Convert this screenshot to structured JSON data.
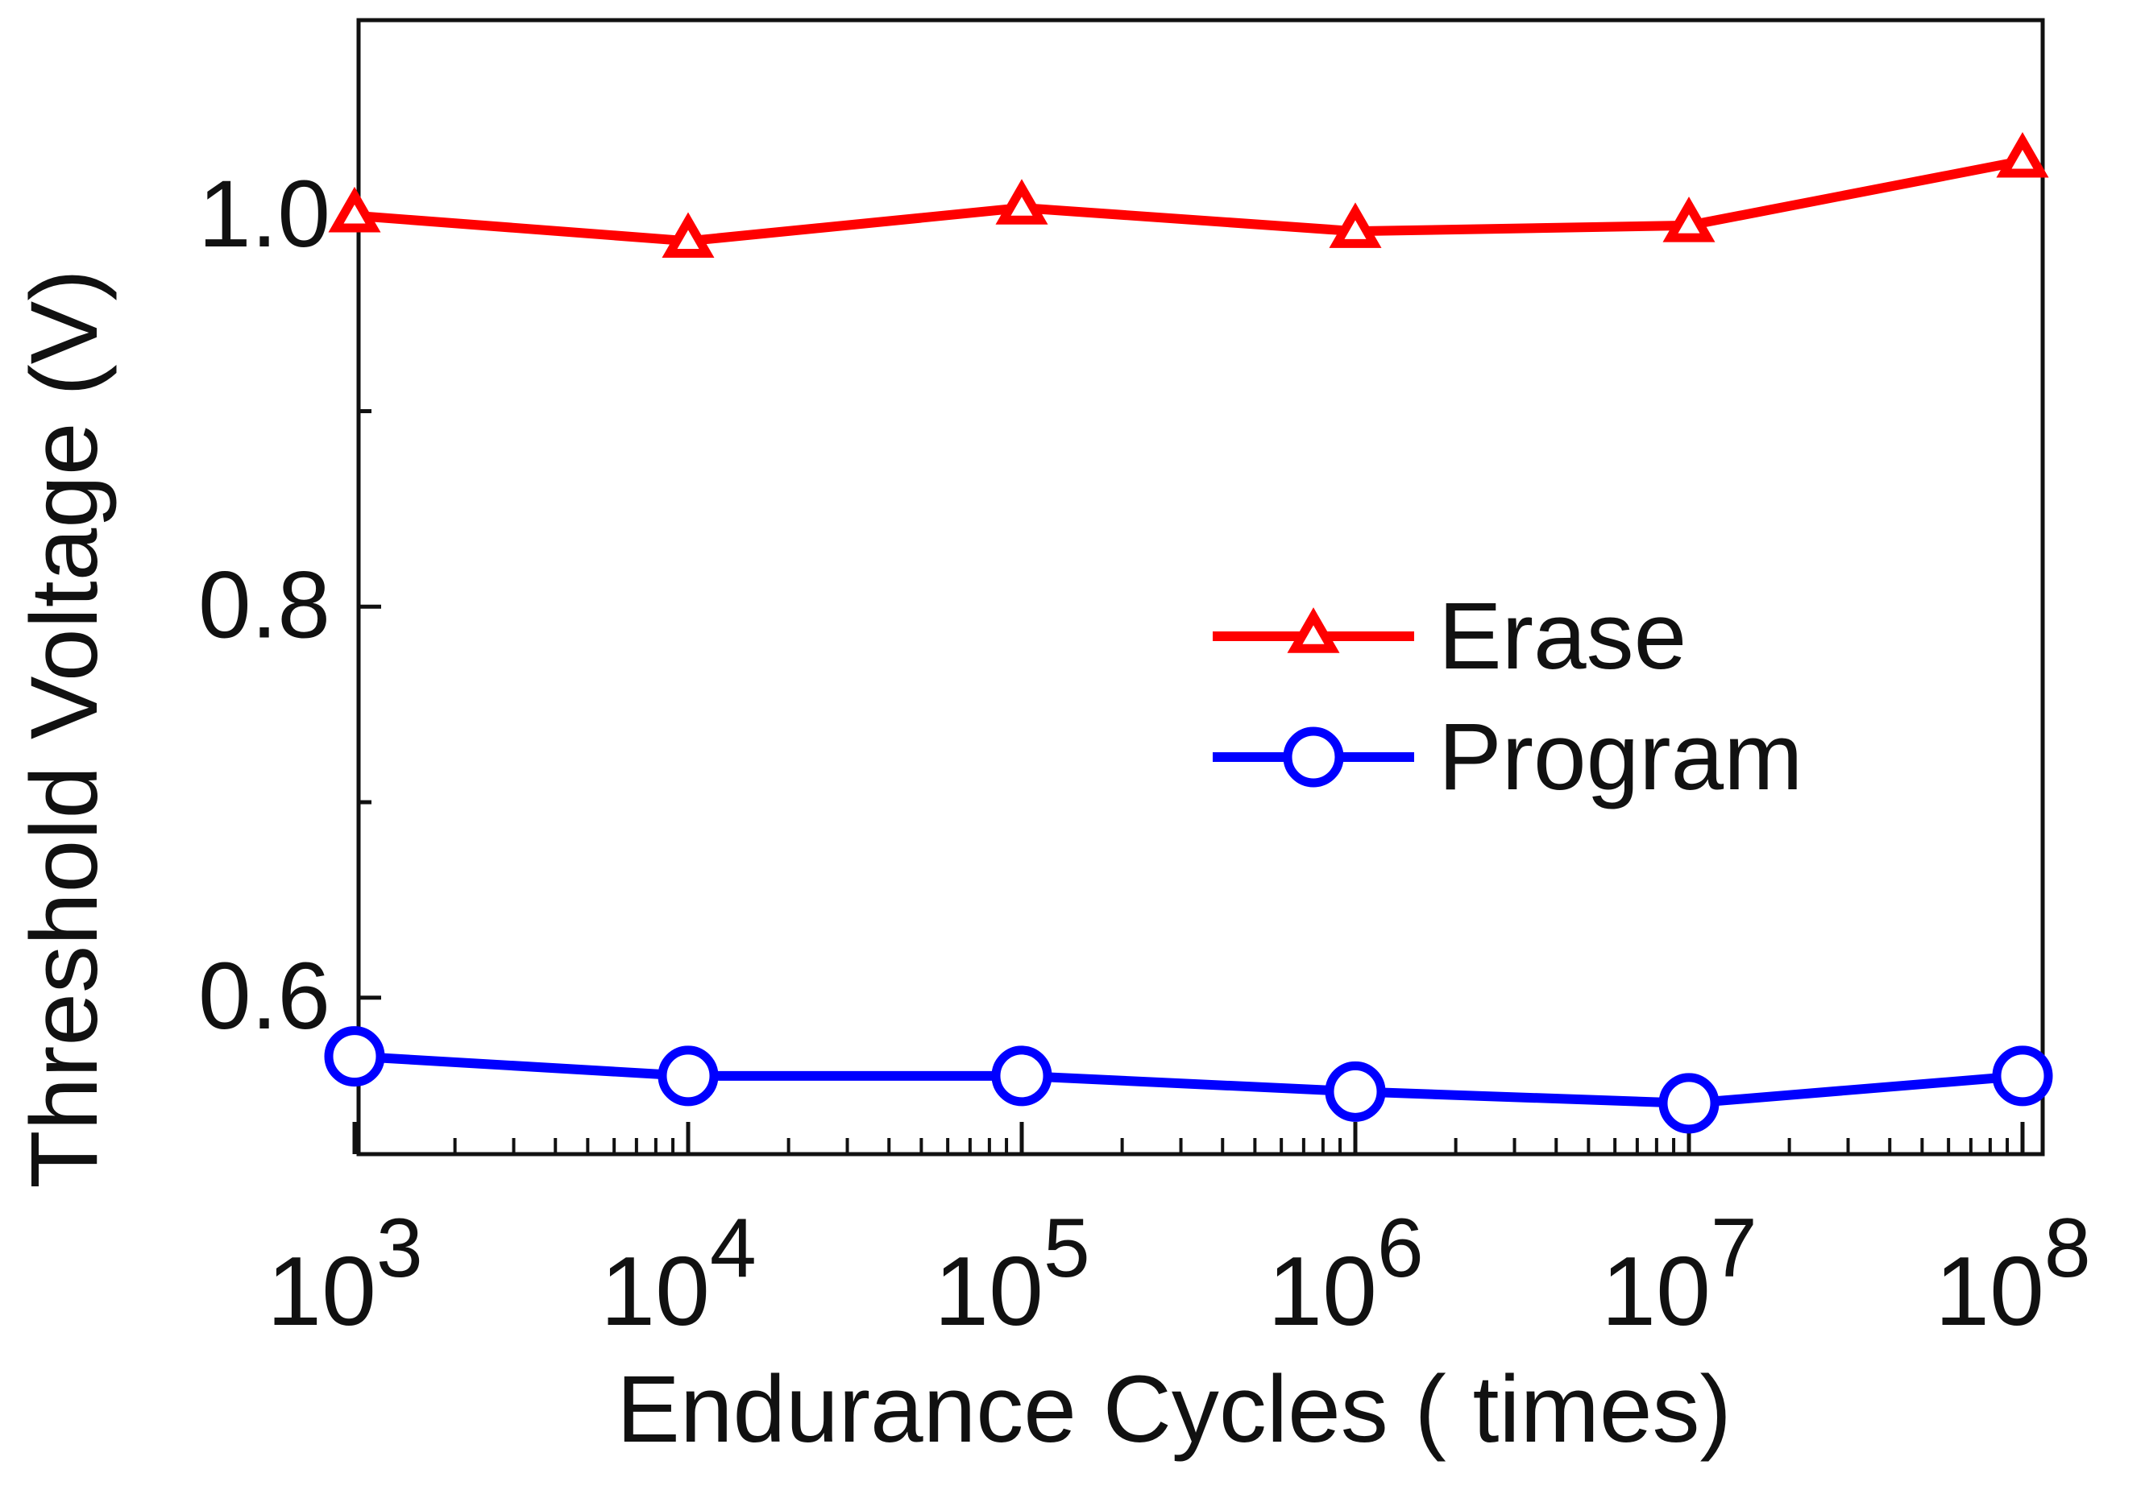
{
  "chart_data": {
    "type": "line",
    "title": "",
    "xlabel": "Endurance Cycles ( times)",
    "ylabel": "Threshold Voltage (V)",
    "x_scale": "log",
    "x": [
      1000,
      10000,
      100000,
      1000000,
      10000000,
      100000000
    ],
    "x_tick_labels": [
      {
        "base": "10",
        "exp": "3"
      },
      {
        "base": "10",
        "exp": "4"
      },
      {
        "base": "10",
        "exp": "5"
      },
      {
        "base": "10",
        "exp": "6"
      },
      {
        "base": "10",
        "exp": "7"
      },
      {
        "base": "10",
        "exp": "8"
      }
    ],
    "xlim": [
      1000,
      100000000
    ],
    "ylim": [
      0.52,
      1.1
    ],
    "y_ticks": [
      0.6,
      0.8,
      1.0
    ],
    "y_tick_labels": [
      "0.6",
      "0.8",
      "1.0"
    ],
    "series": [
      {
        "name": "Erase",
        "marker": "triangle",
        "color": "#ff0000",
        "values": [
          1.0,
          0.987,
          1.004,
          0.992,
          0.995,
          1.028
        ]
      },
      {
        "name": "Program",
        "marker": "circle",
        "color": "#0000ff",
        "values": [
          0.57,
          0.56,
          0.56,
          0.552,
          0.546,
          0.56
        ]
      }
    ],
    "legend": {
      "position": "center-right",
      "entries": [
        "Erase",
        "Program"
      ]
    },
    "grid": false
  }
}
